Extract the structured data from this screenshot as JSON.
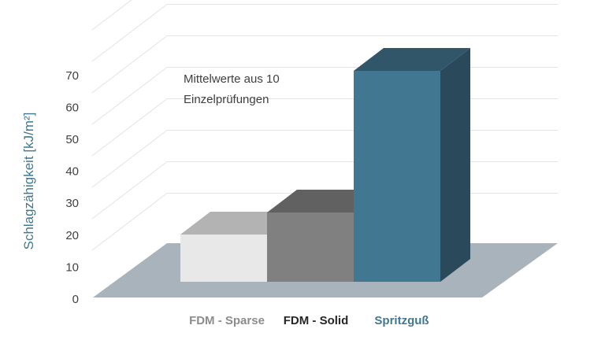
{
  "chart_data": {
    "type": "bar",
    "title": "",
    "xlabel": "",
    "ylabel": "Schlagzähigkeit [kJ/m²]",
    "annotation": [
      "Mittelwerte aus 10",
      "Einzelprüfungen"
    ],
    "ylim": [
      0,
      70
    ],
    "yticks": [
      0,
      10,
      20,
      30,
      40,
      50,
      60,
      70
    ],
    "categories": [
      "FDM -  Sparse",
      "FDM - Solid",
      "Spritzguß"
    ],
    "values": [
      15,
      22,
      67
    ],
    "grid": true,
    "legend": "none",
    "colors": {
      "bars": [
        {
          "front": "#e8e8e8",
          "top": "#b3b3b3",
          "side": "#cfcfcf"
        },
        {
          "front": "#808080",
          "top": "#616161",
          "side": "#6a6a6a"
        },
        {
          "front": "#417790",
          "top": "#31566a",
          "side": "#2a4a5b"
        }
      ],
      "labels": [
        "#8c8c8c",
        "#262626",
        "#417790"
      ],
      "floor": "#a9b3bb",
      "grid": "#e3e3e3"
    }
  }
}
